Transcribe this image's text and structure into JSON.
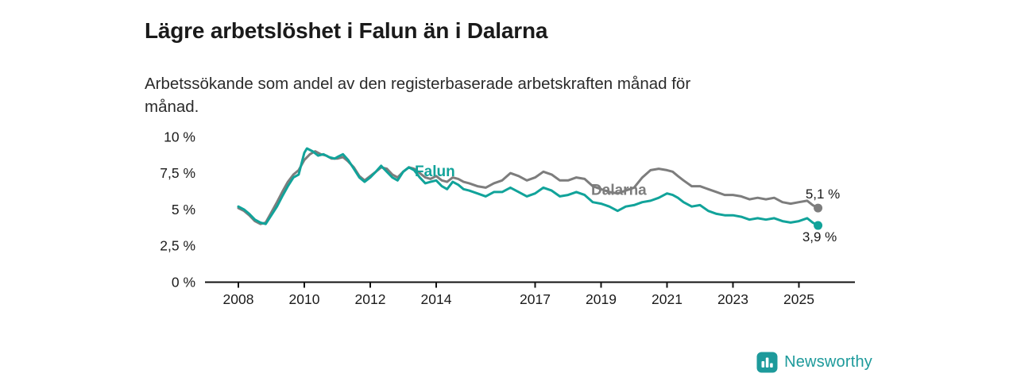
{
  "title": "Lägre arbetslöshet i Falun än i Dalarna",
  "subtitle": "Arbetssökande som andel av den registerbaserade arbetskraften månad för månad.",
  "branding": {
    "name": "Newsworthy",
    "color": "#1d9a9b"
  },
  "chart_data": {
    "type": "line",
    "title": "Lägre arbetslöshet i Falun än i Dalarna",
    "subtitle": "Arbetssökande som andel av den registerbaserade arbetskraften månad för månad.",
    "xlabel": "",
    "ylabel": "",
    "y_unit": "%",
    "ylim": [
      0,
      10
    ],
    "xlim": [
      2007.3,
      2026.6
    ],
    "grid": false,
    "x_ticks": [
      {
        "value": 2008,
        "label": "2008"
      },
      {
        "value": 2010,
        "label": "2010"
      },
      {
        "value": 2012,
        "label": "2012"
      },
      {
        "value": 2014,
        "label": "2014"
      },
      {
        "value": 2017,
        "label": "2017"
      },
      {
        "value": 2019,
        "label": "2019"
      },
      {
        "value": 2021,
        "label": "2021"
      },
      {
        "value": 2023,
        "label": "2023"
      },
      {
        "value": 2025,
        "label": "2025"
      }
    ],
    "y_ticks": [
      {
        "value": 0,
        "label": "0 %"
      },
      {
        "value": 2.5,
        "label": "2,5 %"
      },
      {
        "value": 5,
        "label": "5 %"
      },
      {
        "value": 7.5,
        "label": "7,5 %"
      },
      {
        "value": 10,
        "label": "10 %"
      }
    ],
    "series": [
      {
        "name": "Falun",
        "color": "#11a39a",
        "end_label": "3,9 %",
        "end_label_offset": [
          2,
          20
        ],
        "label_at": [
          2013.35,
          7.3
        ],
        "points": [
          [
            2008.0,
            5.2
          ],
          [
            2008.17,
            5.0
          ],
          [
            2008.33,
            4.7
          ],
          [
            2008.5,
            4.3
          ],
          [
            2008.67,
            4.1
          ],
          [
            2008.83,
            4.0
          ],
          [
            2009.0,
            4.6
          ],
          [
            2009.17,
            5.2
          ],
          [
            2009.33,
            5.9
          ],
          [
            2009.5,
            6.6
          ],
          [
            2009.67,
            7.2
          ],
          [
            2009.83,
            7.4
          ],
          [
            2010.0,
            8.9
          ],
          [
            2010.08,
            9.2
          ],
          [
            2010.25,
            9.0
          ],
          [
            2010.42,
            8.7
          ],
          [
            2010.58,
            8.8
          ],
          [
            2010.75,
            8.6
          ],
          [
            2010.92,
            8.5
          ],
          [
            2011.0,
            8.6
          ],
          [
            2011.17,
            8.8
          ],
          [
            2011.33,
            8.4
          ],
          [
            2011.5,
            7.8
          ],
          [
            2011.67,
            7.2
          ],
          [
            2011.83,
            6.9
          ],
          [
            2012.0,
            7.2
          ],
          [
            2012.17,
            7.6
          ],
          [
            2012.33,
            8.0
          ],
          [
            2012.5,
            7.6
          ],
          [
            2012.67,
            7.2
          ],
          [
            2012.83,
            7.0
          ],
          [
            2013.0,
            7.6
          ],
          [
            2013.17,
            7.9
          ],
          [
            2013.33,
            7.7
          ],
          [
            2013.5,
            7.2
          ],
          [
            2013.67,
            6.8
          ],
          [
            2013.83,
            6.9
          ],
          [
            2014.0,
            7.0
          ],
          [
            2014.17,
            6.6
          ],
          [
            2014.33,
            6.4
          ],
          [
            2014.5,
            6.9
          ],
          [
            2014.67,
            6.7
          ],
          [
            2014.83,
            6.4
          ],
          [
            2015.0,
            6.3
          ],
          [
            2015.25,
            6.1
          ],
          [
            2015.5,
            5.9
          ],
          [
            2015.75,
            6.2
          ],
          [
            2016.0,
            6.2
          ],
          [
            2016.25,
            6.5
          ],
          [
            2016.5,
            6.2
          ],
          [
            2016.75,
            5.9
          ],
          [
            2017.0,
            6.1
          ],
          [
            2017.25,
            6.5
          ],
          [
            2017.5,
            6.3
          ],
          [
            2017.75,
            5.9
          ],
          [
            2018.0,
            6.0
          ],
          [
            2018.25,
            6.2
          ],
          [
            2018.5,
            6.0
          ],
          [
            2018.75,
            5.5
          ],
          [
            2019.0,
            5.4
          ],
          [
            2019.25,
            5.2
          ],
          [
            2019.5,
            4.9
          ],
          [
            2019.75,
            5.2
          ],
          [
            2020.0,
            5.3
          ],
          [
            2020.25,
            5.5
          ],
          [
            2020.5,
            5.6
          ],
          [
            2020.75,
            5.8
          ],
          [
            2021.0,
            6.1
          ],
          [
            2021.17,
            6.0
          ],
          [
            2021.33,
            5.8
          ],
          [
            2021.5,
            5.5
          ],
          [
            2021.75,
            5.2
          ],
          [
            2022.0,
            5.3
          ],
          [
            2022.25,
            4.9
          ],
          [
            2022.5,
            4.7
          ],
          [
            2022.75,
            4.6
          ],
          [
            2023.0,
            4.6
          ],
          [
            2023.25,
            4.5
          ],
          [
            2023.5,
            4.3
          ],
          [
            2023.75,
            4.4
          ],
          [
            2024.0,
            4.3
          ],
          [
            2024.25,
            4.4
          ],
          [
            2024.5,
            4.2
          ],
          [
            2024.75,
            4.1
          ],
          [
            2025.0,
            4.2
          ],
          [
            2025.25,
            4.4
          ],
          [
            2025.42,
            4.1
          ],
          [
            2025.58,
            3.9
          ]
        ]
      },
      {
        "name": "Dalarna",
        "color": "#7d7d7d",
        "end_label": "5,1 %",
        "end_label_offset": [
          6,
          -12
        ],
        "label_at": [
          2018.7,
          6.0
        ],
        "points": [
          [
            2008.0,
            5.1
          ],
          [
            2008.17,
            4.9
          ],
          [
            2008.33,
            4.6
          ],
          [
            2008.5,
            4.2
          ],
          [
            2008.67,
            4.0
          ],
          [
            2008.83,
            4.1
          ],
          [
            2009.0,
            4.8
          ],
          [
            2009.17,
            5.5
          ],
          [
            2009.33,
            6.2
          ],
          [
            2009.5,
            6.9
          ],
          [
            2009.67,
            7.4
          ],
          [
            2009.83,
            7.7
          ],
          [
            2010.0,
            8.4
          ],
          [
            2010.17,
            8.8
          ],
          [
            2010.33,
            9.0
          ],
          [
            2010.5,
            8.8
          ],
          [
            2010.67,
            8.7
          ],
          [
            2010.83,
            8.5
          ],
          [
            2011.0,
            8.5
          ],
          [
            2011.17,
            8.6
          ],
          [
            2011.33,
            8.3
          ],
          [
            2011.5,
            7.9
          ],
          [
            2011.67,
            7.3
          ],
          [
            2011.83,
            7.0
          ],
          [
            2012.0,
            7.3
          ],
          [
            2012.17,
            7.6
          ],
          [
            2012.33,
            7.9
          ],
          [
            2012.5,
            7.8
          ],
          [
            2012.67,
            7.4
          ],
          [
            2012.83,
            7.2
          ],
          [
            2013.0,
            7.6
          ],
          [
            2013.17,
            7.9
          ],
          [
            2013.33,
            7.8
          ],
          [
            2013.5,
            7.5
          ],
          [
            2013.67,
            7.2
          ],
          [
            2013.83,
            7.1
          ],
          [
            2014.0,
            7.3
          ],
          [
            2014.17,
            7.0
          ],
          [
            2014.33,
            6.9
          ],
          [
            2014.5,
            7.2
          ],
          [
            2014.67,
            7.1
          ],
          [
            2014.83,
            6.9
          ],
          [
            2015.0,
            6.8
          ],
          [
            2015.25,
            6.6
          ],
          [
            2015.5,
            6.5
          ],
          [
            2015.75,
            6.8
          ],
          [
            2016.0,
            7.0
          ],
          [
            2016.25,
            7.5
          ],
          [
            2016.5,
            7.3
          ],
          [
            2016.75,
            7.0
          ],
          [
            2017.0,
            7.2
          ],
          [
            2017.25,
            7.6
          ],
          [
            2017.5,
            7.4
          ],
          [
            2017.75,
            7.0
          ],
          [
            2018.0,
            7.0
          ],
          [
            2018.25,
            7.2
          ],
          [
            2018.5,
            7.1
          ],
          [
            2018.75,
            6.6
          ],
          [
            2019.0,
            6.4
          ],
          [
            2019.25,
            6.2
          ],
          [
            2019.5,
            6.1
          ],
          [
            2019.75,
            6.3
          ],
          [
            2020.0,
            6.5
          ],
          [
            2020.25,
            7.2
          ],
          [
            2020.5,
            7.7
          ],
          [
            2020.75,
            7.8
          ],
          [
            2021.0,
            7.7
          ],
          [
            2021.17,
            7.6
          ],
          [
            2021.33,
            7.3
          ],
          [
            2021.5,
            7.0
          ],
          [
            2021.75,
            6.6
          ],
          [
            2022.0,
            6.6
          ],
          [
            2022.25,
            6.4
          ],
          [
            2022.5,
            6.2
          ],
          [
            2022.75,
            6.0
          ],
          [
            2023.0,
            6.0
          ],
          [
            2023.25,
            5.9
          ],
          [
            2023.5,
            5.7
          ],
          [
            2023.75,
            5.8
          ],
          [
            2024.0,
            5.7
          ],
          [
            2024.25,
            5.8
          ],
          [
            2024.5,
            5.5
          ],
          [
            2024.75,
            5.4
          ],
          [
            2025.0,
            5.5
          ],
          [
            2025.25,
            5.6
          ],
          [
            2025.42,
            5.3
          ],
          [
            2025.58,
            5.1
          ]
        ]
      }
    ]
  }
}
